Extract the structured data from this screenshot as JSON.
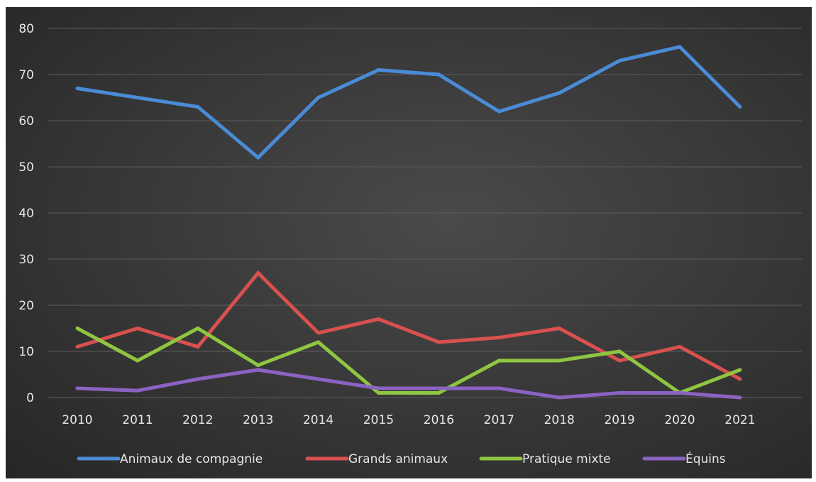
{
  "chart_data": {
    "type": "line",
    "title": "",
    "xlabel": "",
    "ylabel": "",
    "x": [
      "2010",
      "2011",
      "2012",
      "2013",
      "2014",
      "2015",
      "2016",
      "2017",
      "2018",
      "2019",
      "2020",
      "2021"
    ],
    "yticks": [
      "0",
      "10",
      "20",
      "30",
      "40",
      "50",
      "60",
      "70",
      "80"
    ],
    "ylim": [
      0,
      80
    ],
    "grid": true,
    "legend_position": "bottom",
    "series": [
      {
        "name": "Animaux de compagnie",
        "color": "#4a8bd6",
        "values": [
          67,
          65,
          63,
          52,
          65,
          71,
          70,
          62,
          66,
          73,
          76,
          63
        ]
      },
      {
        "name": "Grands animaux",
        "color": "#d9514e",
        "values": [
          11,
          15,
          11,
          27,
          14,
          17,
          12,
          13,
          15,
          8,
          11,
          4
        ]
      },
      {
        "name": "Pratique mixte",
        "color": "#8fc641",
        "values": [
          15,
          8,
          15,
          7,
          12,
          1,
          1,
          8,
          8,
          10,
          1,
          6
        ]
      },
      {
        "name": "Équins",
        "color": "#8b63c2",
        "values": [
          2,
          1.5,
          4,
          6,
          4,
          2,
          2,
          2,
          0,
          1,
          1,
          0
        ]
      }
    ]
  }
}
